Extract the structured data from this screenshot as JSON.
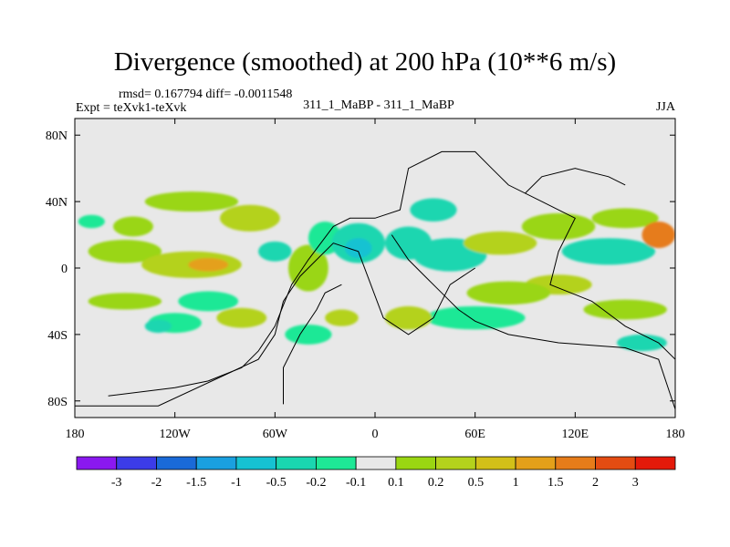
{
  "chart_data": {
    "type": "heatmap",
    "title": "Divergence (smoothed) at 200 hPa (10**6 m/s)",
    "stats": "rmsd= 0.167794 diff= -0.0011548",
    "experiment": "Expt = teXvk1-teXvk",
    "case": "311_1_MaBP - 311_1_MaBP",
    "season": "JJA",
    "x_range": [
      -180,
      180
    ],
    "y_range": [
      -90,
      90
    ],
    "x_ticks": [
      {
        "value": -180,
        "label": "180"
      },
      {
        "value": -120,
        "label": "120W"
      },
      {
        "value": -60,
        "label": "60W"
      },
      {
        "value": 0,
        "label": "0"
      },
      {
        "value": 60,
        "label": "60E"
      },
      {
        "value": 120,
        "label": "120E"
      },
      {
        "value": 180,
        "label": "180"
      }
    ],
    "y_ticks": [
      {
        "value": 80,
        "label": "80N"
      },
      {
        "value": 40,
        "label": "40N"
      },
      {
        "value": 0,
        "label": "0"
      },
      {
        "value": -40,
        "label": "40S"
      },
      {
        "value": -80,
        "label": "80S"
      }
    ],
    "colorbar": {
      "colors": [
        "#8a18f0",
        "#3c3ce8",
        "#1a6ad8",
        "#1aa0e0",
        "#16c2d2",
        "#1ad6b0",
        "#1ee896",
        "#e8e8e8",
        "#9ad612",
        "#b4d21c",
        "#d2c018",
        "#e4a01a",
        "#e67c1a",
        "#e44c12",
        "#e41a0a"
      ],
      "labels": [
        "-3",
        "-2",
        "-1.5",
        "-1",
        "-0.5",
        "-0.2",
        "-0.1",
        "0.1",
        "0.2",
        "0.5",
        "1",
        "1.5",
        "2",
        "3"
      ]
    },
    "blobs": [
      {
        "lon": -170,
        "lat": 28,
        "rx": 8,
        "ry": 4,
        "level": 6
      },
      {
        "lon": -150,
        "lat": 10,
        "rx": 22,
        "ry": 7,
        "level": 8
      },
      {
        "lon": -110,
        "lat": 2,
        "rx": 30,
        "ry": 8,
        "level": 9
      },
      {
        "lon": -100,
        "lat": 2,
        "rx": 12,
        "ry": 4,
        "level": 11
      },
      {
        "lon": -145,
        "lat": 25,
        "rx": 12,
        "ry": 6,
        "level": 8
      },
      {
        "lon": -110,
        "lat": 40,
        "rx": 28,
        "ry": 6,
        "level": 8
      },
      {
        "lon": -75,
        "lat": 30,
        "rx": 18,
        "ry": 8,
        "level": 9
      },
      {
        "lon": -60,
        "lat": 10,
        "rx": 10,
        "ry": 6,
        "level": 5
      },
      {
        "lon": -150,
        "lat": -20,
        "rx": 22,
        "ry": 5,
        "level": 8
      },
      {
        "lon": -100,
        "lat": -20,
        "rx": 18,
        "ry": 6,
        "level": 6
      },
      {
        "lon": -80,
        "lat": -30,
        "rx": 15,
        "ry": 6,
        "level": 9
      },
      {
        "lon": -120,
        "lat": -33,
        "rx": 16,
        "ry": 6,
        "level": 6
      },
      {
        "lon": -130,
        "lat": -35,
        "rx": 8,
        "ry": 4,
        "level": 5
      },
      {
        "lon": -40,
        "lat": 0,
        "rx": 12,
        "ry": 14,
        "level": 8
      },
      {
        "lon": -30,
        "lat": 18,
        "rx": 10,
        "ry": 10,
        "level": 6
      },
      {
        "lon": -10,
        "lat": 15,
        "rx": 16,
        "ry": 12,
        "level": 5
      },
      {
        "lon": -10,
        "lat": 12,
        "rx": 8,
        "ry": 6,
        "level": 4
      },
      {
        "lon": 20,
        "lat": 15,
        "rx": 14,
        "ry": 10,
        "level": 5
      },
      {
        "lon": 45,
        "lat": 8,
        "rx": 22,
        "ry": 10,
        "level": 5
      },
      {
        "lon": 35,
        "lat": 35,
        "rx": 14,
        "ry": 7,
        "level": 5
      },
      {
        "lon": 75,
        "lat": 15,
        "rx": 22,
        "ry": 7,
        "level": 9
      },
      {
        "lon": 110,
        "lat": 25,
        "rx": 22,
        "ry": 8,
        "level": 8
      },
      {
        "lon": 150,
        "lat": 30,
        "rx": 20,
        "ry": 6,
        "level": 8
      },
      {
        "lon": 140,
        "lat": 10,
        "rx": 28,
        "ry": 8,
        "level": 5
      },
      {
        "lon": 170,
        "lat": 20,
        "rx": 10,
        "ry": 8,
        "level": 12
      },
      {
        "lon": 110,
        "lat": -10,
        "rx": 20,
        "ry": 6,
        "level": 9
      },
      {
        "lon": 80,
        "lat": -15,
        "rx": 25,
        "ry": 7,
        "level": 8
      },
      {
        "lon": 60,
        "lat": -30,
        "rx": 30,
        "ry": 7,
        "level": 6
      },
      {
        "lon": 150,
        "lat": -25,
        "rx": 25,
        "ry": 6,
        "level": 8
      },
      {
        "lon": 160,
        "lat": -45,
        "rx": 15,
        "ry": 5,
        "level": 5
      },
      {
        "lon": 20,
        "lat": -30,
        "rx": 14,
        "ry": 7,
        "level": 9
      },
      {
        "lon": -40,
        "lat": -40,
        "rx": 14,
        "ry": 6,
        "level": 6
      },
      {
        "lon": -20,
        "lat": -30,
        "rx": 10,
        "ry": 5,
        "level": 9
      }
    ],
    "map_outlines": [
      [
        [
          -160,
          -77
        ],
        [
          -120,
          -72
        ],
        [
          -100,
          -68
        ],
        [
          -80,
          -60
        ],
        [
          -70,
          -50
        ],
        [
          -60,
          -35
        ],
        [
          -50,
          -10
        ],
        [
          -40,
          5
        ],
        [
          -25,
          25
        ],
        [
          -15,
          30
        ],
        [
          0,
          30
        ],
        [
          15,
          35
        ],
        [
          20,
          60
        ],
        [
          40,
          70
        ],
        [
          60,
          70
        ],
        [
          70,
          60
        ],
        [
          80,
          50
        ],
        [
          100,
          40
        ],
        [
          120,
          30
        ],
        [
          110,
          10
        ],
        [
          105,
          -10
        ],
        [
          130,
          -20
        ],
        [
          150,
          -35
        ],
        [
          170,
          -45
        ],
        [
          180,
          -55
        ]
      ],
      [
        [
          -180,
          -83
        ],
        [
          -130,
          -83
        ],
        [
          -70,
          -55
        ],
        [
          -60,
          -40
        ],
        [
          -55,
          -20
        ],
        [
          -45,
          -5
        ],
        [
          -35,
          5
        ],
        [
          -25,
          15
        ],
        [
          -10,
          10
        ],
        [
          5,
          -30
        ],
        [
          20,
          -40
        ],
        [
          35,
          -30
        ],
        [
          45,
          -10
        ],
        [
          60,
          0
        ]
      ],
      [
        [
          -55,
          -82
        ],
        [
          -55,
          -60
        ],
        [
          -45,
          -40
        ],
        [
          -35,
          -25
        ],
        [
          -30,
          -15
        ],
        [
          -20,
          -10
        ]
      ],
      [
        [
          10,
          20
        ],
        [
          20,
          5
        ],
        [
          30,
          -5
        ],
        [
          40,
          -15
        ],
        [
          50,
          -25
        ],
        [
          60,
          -32
        ],
        [
          80,
          -40
        ],
        [
          110,
          -45
        ],
        [
          150,
          -48
        ],
        [
          170,
          -55
        ],
        [
          180,
          -85
        ]
      ],
      [
        [
          90,
          45
        ],
        [
          100,
          55
        ],
        [
          120,
          60
        ],
        [
          140,
          55
        ],
        [
          150,
          50
        ]
      ]
    ]
  }
}
